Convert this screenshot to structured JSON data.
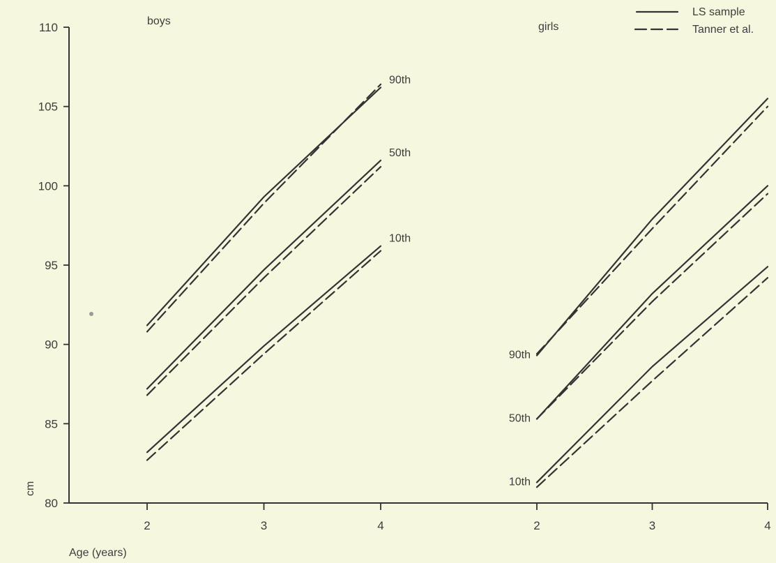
{
  "chart_data": {
    "type": "line",
    "title": "",
    "xlabel": "Age (years)",
    "ylabel": "cm",
    "y_ticks": [
      80,
      85,
      90,
      95,
      100,
      105,
      110
    ],
    "ylim": [
      80,
      110
    ],
    "grid": false,
    "legend": {
      "placement": "top-right",
      "entries": [
        {
          "name": "LS sample",
          "style": "solid"
        },
        {
          "name": "Tanner et al.",
          "style": "dashed"
        }
      ]
    },
    "panels": [
      {
        "label": "boys",
        "x_ticks": [
          2,
          3,
          4
        ],
        "percentile_labels_side": "right",
        "series": [
          {
            "group": "LS sample",
            "percentile": "90th",
            "style": "solid",
            "x": [
              2,
              3,
              4
            ],
            "y": [
              91.2,
              99.3,
              106.2
            ]
          },
          {
            "group": "Tanner et al.",
            "percentile": "90th",
            "style": "dashed",
            "x": [
              2,
              3,
              4
            ],
            "y": [
              90.8,
              98.9,
              106.4
            ]
          },
          {
            "group": "LS sample",
            "percentile": "50th",
            "style": "solid",
            "x": [
              2,
              3,
              4
            ],
            "y": [
              87.2,
              94.7,
              101.6
            ]
          },
          {
            "group": "Tanner et al.",
            "percentile": "50th",
            "style": "dashed",
            "x": [
              2,
              3,
              4
            ],
            "y": [
              86.8,
              94.2,
              101.2
            ]
          },
          {
            "group": "LS sample",
            "percentile": "10th",
            "style": "solid",
            "x": [
              2,
              3,
              4
            ],
            "y": [
              83.2,
              89.9,
              96.2
            ]
          },
          {
            "group": "Tanner et al.",
            "percentile": "10th",
            "style": "dashed",
            "x": [
              2,
              3,
              4
            ],
            "y": [
              82.7,
              89.4,
              95.9
            ]
          }
        ],
        "percentile_labels": [
          "90th",
          "50th",
          "10th"
        ]
      },
      {
        "label": "girls",
        "x_ticks": [
          2,
          3,
          4
        ],
        "percentile_labels_side": "left",
        "series": [
          {
            "group": "LS sample",
            "percentile": "90th",
            "style": "solid",
            "x": [
              2,
              3,
              4
            ],
            "y": [
              89.3,
              97.9,
              105.5
            ]
          },
          {
            "group": "Tanner et al.",
            "percentile": "90th",
            "style": "dashed",
            "x": [
              2,
              3,
              4
            ],
            "y": [
              89.4,
              97.3,
              105.0
            ]
          },
          {
            "group": "LS sample",
            "percentile": "50th",
            "style": "solid",
            "x": [
              2,
              3,
              4
            ],
            "y": [
              85.3,
              93.2,
              100.0
            ]
          },
          {
            "group": "Tanner et al.",
            "percentile": "50th",
            "style": "dashed",
            "x": [
              2,
              3,
              4
            ],
            "y": [
              85.3,
              92.7,
              99.5
            ]
          },
          {
            "group": "LS sample",
            "percentile": "10th",
            "style": "solid",
            "x": [
              2,
              3,
              4
            ],
            "y": [
              81.3,
              88.6,
              94.9
            ]
          },
          {
            "group": "Tanner et al.",
            "percentile": "10th",
            "style": "dashed",
            "x": [
              2,
              3,
              4
            ],
            "y": [
              81.0,
              87.7,
              94.2
            ]
          }
        ],
        "percentile_labels": [
          "90th",
          "50th",
          "10th"
        ]
      }
    ]
  }
}
